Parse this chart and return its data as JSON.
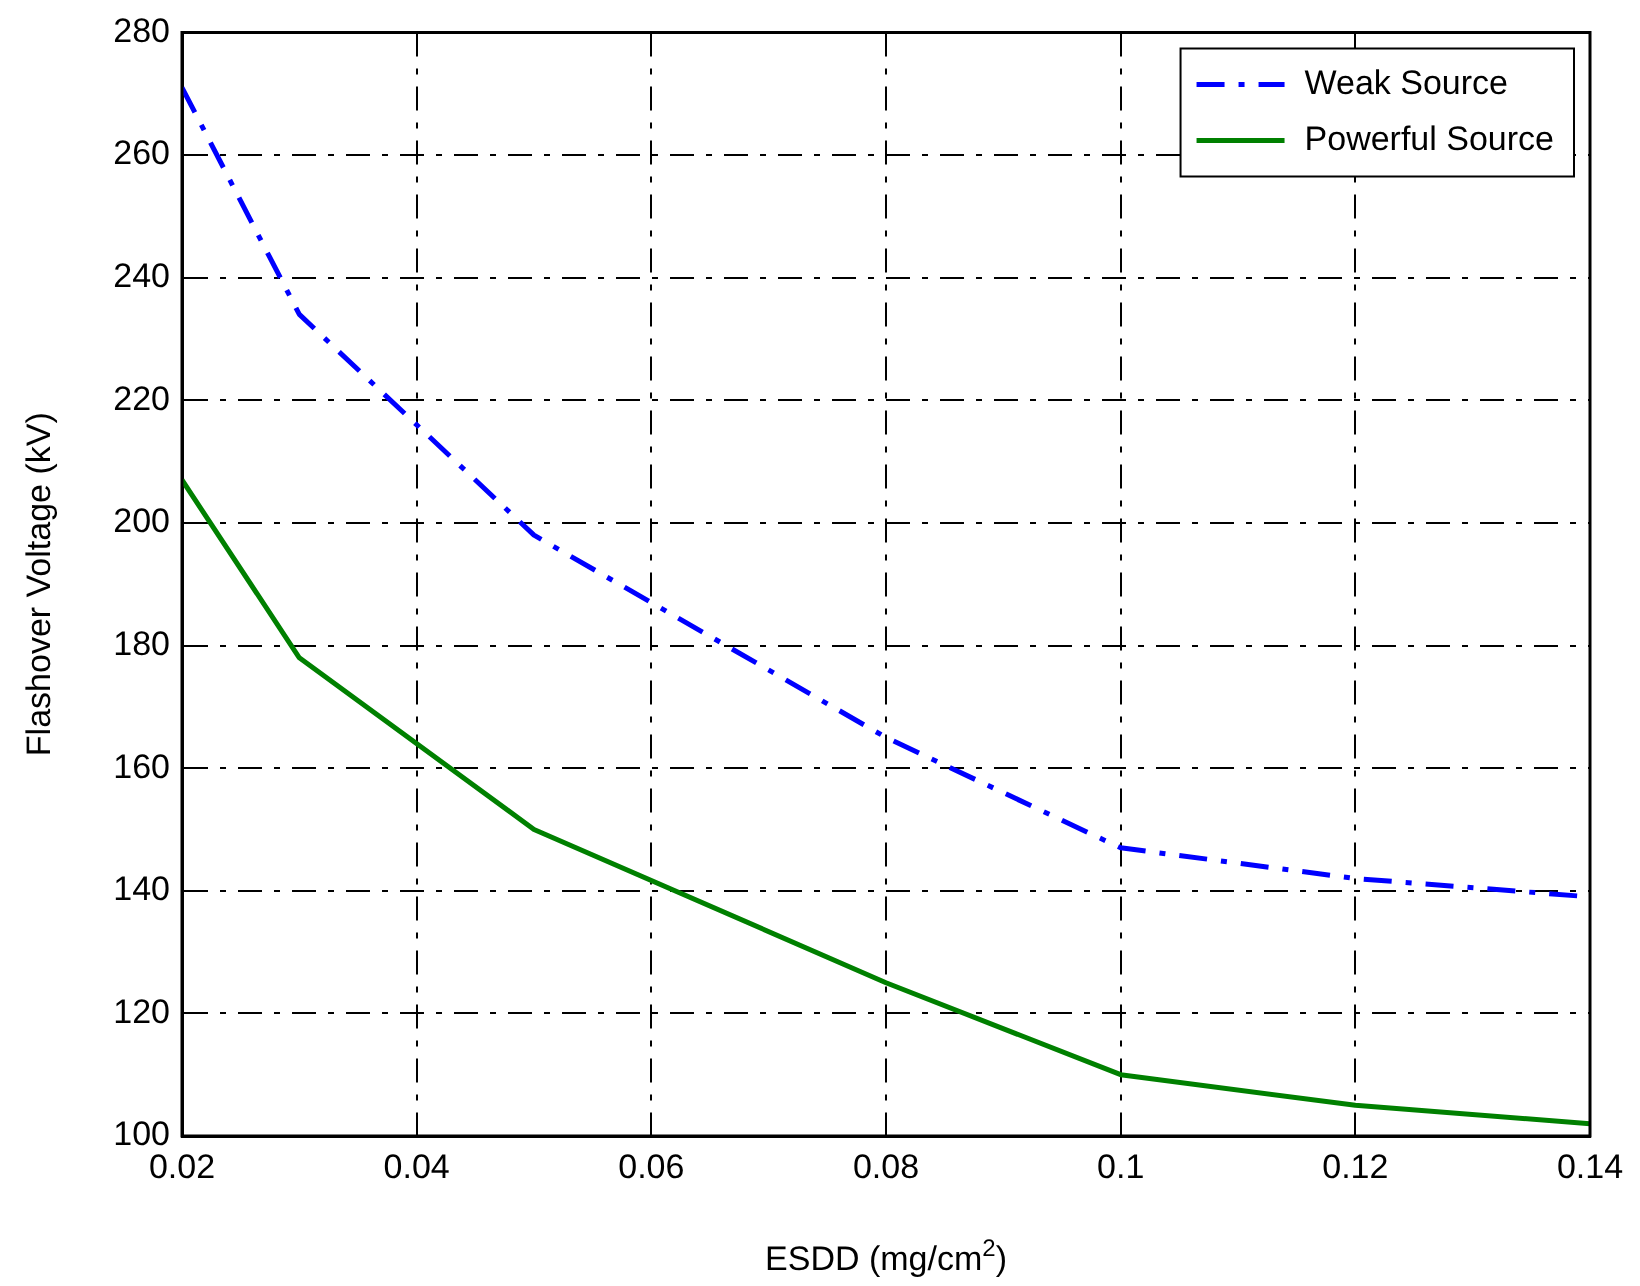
{
  "chart_data": {
    "type": "line",
    "xlabel": "ESDD (mg/cm$^{2}$)",
    "ylabel": "Flashover Voltage (kV)",
    "x": [
      0.02,
      0.03,
      0.05,
      0.08,
      0.1,
      0.12,
      0.14
    ],
    "series": [
      {
        "name": "Weak Source",
        "color": "#0000ff",
        "line_style": "dashed",
        "values": [
          271,
          234,
          198,
          165,
          147,
          142,
          139
        ]
      },
      {
        "name": "Powerful Source",
        "color": "#008000",
        "line_style": "solid",
        "values": [
          207,
          178,
          150,
          125,
          110,
          105,
          102
        ]
      }
    ],
    "xlim": [
      0.02,
      0.14
    ],
    "xticks": [
      0.02,
      0.04,
      0.06,
      0.08,
      0.1,
      0.12,
      0.14
    ],
    "ylim": [
      100,
      280
    ],
    "yticks": [
      100,
      120,
      140,
      160,
      180,
      200,
      220,
      240,
      260,
      280
    ],
    "grid": true,
    "legend": "top right",
    "marker": "none"
  }
}
